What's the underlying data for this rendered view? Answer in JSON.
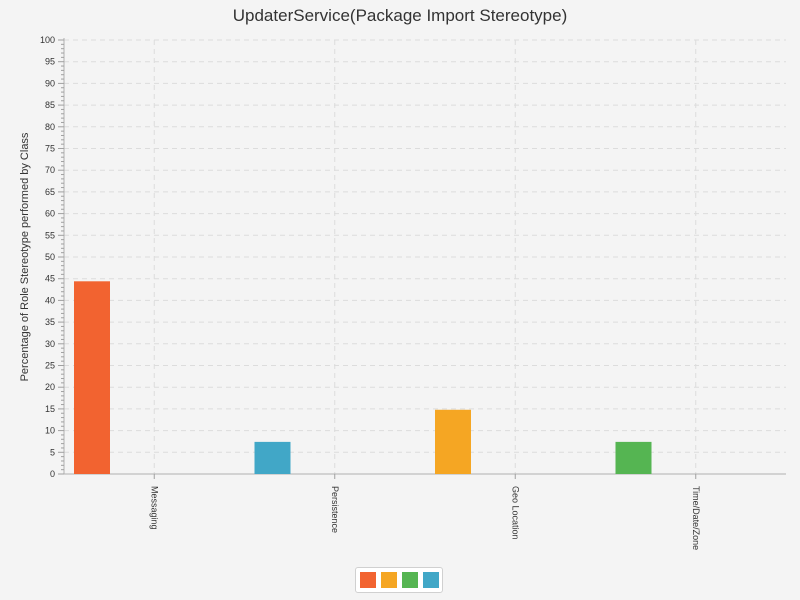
{
  "chart_data": {
    "type": "bar",
    "title": "UpdaterService(Package Import Stereotype)",
    "xlabel": "",
    "ylabel": "Percentage of Role Stereotype performed by Class",
    "ylim": [
      0,
      100
    ],
    "y_major_ticks": [
      0,
      5,
      10,
      15,
      20,
      25,
      30,
      35,
      40,
      45,
      50,
      55,
      60,
      65,
      70,
      75,
      80,
      85,
      90,
      95,
      100
    ],
    "grid": true,
    "legend_position": "bottom",
    "categories": [
      "Messaging",
      "Persistence",
      "Geo Location",
      "Time/Date/Zone"
    ],
    "series": [
      {
        "color": "#f26330",
        "values": [
          44.4,
          0,
          0,
          0
        ]
      },
      {
        "color": "#f5a623",
        "values": [
          0,
          0,
          14.8,
          0
        ]
      },
      {
        "color": "#55b552",
        "values": [
          0,
          0,
          0,
          7.4
        ]
      },
      {
        "color": "#41a7c7",
        "values": [
          0,
          7.4,
          0,
          0
        ]
      }
    ]
  }
}
